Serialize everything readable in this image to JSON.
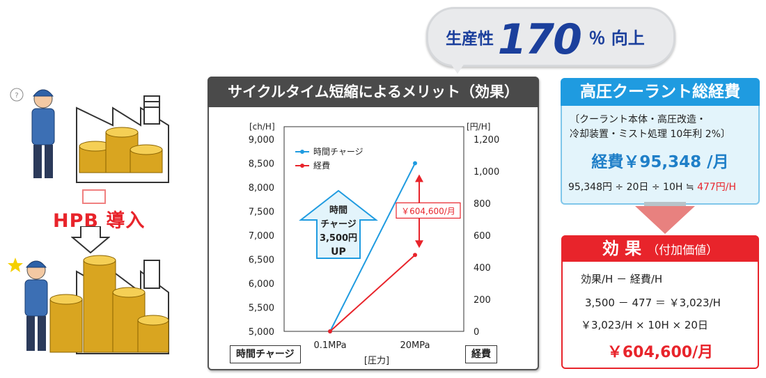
{
  "bubble": {
    "prefix": "生産性",
    "value": "170",
    "suffix": "％ 向上"
  },
  "left": {
    "hpb_label": "HPB 導入"
  },
  "panel": {
    "title": "サイクルタイム短縮によるメリット（効果）",
    "left_tag": "時間チャージ",
    "right_tag": "経費"
  },
  "chart_data": {
    "type": "line",
    "x": [
      "0.1MPa",
      "20MPa"
    ],
    "xlabel": "[圧力]",
    "y_left": {
      "unit": "[ch/H]",
      "ticks": [
        "9,000",
        "8,500",
        "8,000",
        "7,500",
        "7,000",
        "6,500",
        "6,000",
        "5,500",
        "5,000"
      ],
      "ylim": [
        5000,
        9000
      ]
    },
    "y_right": {
      "unit": "[円/H]",
      "ticks": [
        "1,200",
        "1,000",
        "800",
        "600",
        "400",
        "200",
        "0"
      ],
      "ylim": [
        0,
        1200
      ]
    },
    "series": [
      {
        "name": "時間チャージ",
        "axis": "left",
        "color": "#1f9be0",
        "values": [
          5000,
          8500
        ]
      },
      {
        "name": "経費",
        "axis": "right",
        "color": "#e8242b",
        "values": [
          0,
          477
        ]
      }
    ],
    "legend": "top-left",
    "annotations": {
      "up_arrow_lines": [
        "時間",
        "チャージ",
        "3,500円",
        "UP"
      ],
      "gap_label": "￥604,600/月"
    }
  },
  "cost": {
    "title": "高圧クーラント総経費",
    "note_lines": [
      "〔クーラント本体・高圧改造・",
      "冷却装置・ミスト処理 10年利 2%〕"
    ],
    "main": "経費￥95,348 /月",
    "calc": "95,348円 ÷ 20日 ÷ 10H ≒ ",
    "calc_result": "477円/H"
  },
  "effect": {
    "title": "効 果",
    "subtitle": "（付加価値）",
    "lines": [
      "効果/H － 経費/H",
      "3,500 － 477 ＝ ￥3,023/H",
      "￥3,023/H × 10H × 20日"
    ],
    "total": "￥604,600/月"
  },
  "colors": {
    "blue": "#1f9be0",
    "red": "#e8242b",
    "navy": "#1b3f9c",
    "dark": "#4a4a4a"
  }
}
